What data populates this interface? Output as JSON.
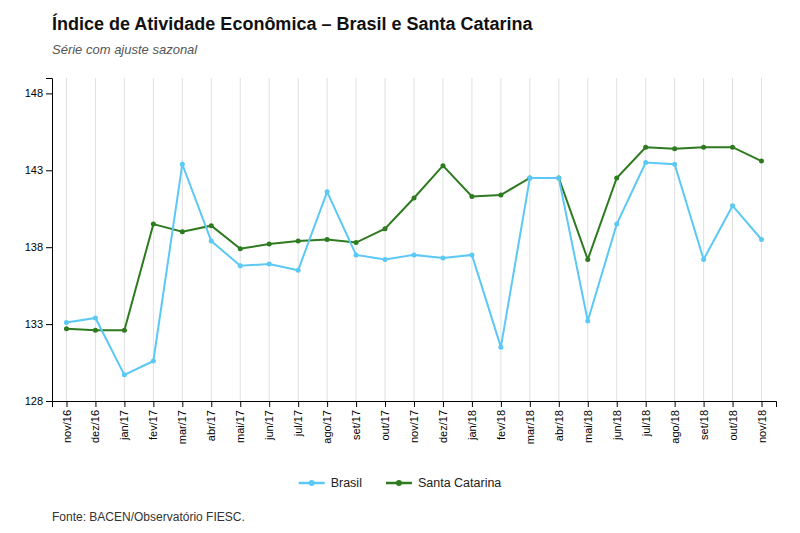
{
  "chart_data": {
    "type": "line",
    "title": "Índice de Atividade Econômica – Brasil e Santa Catarina",
    "subtitle": "Série com ajuste sazonal",
    "source": "Fonte: BACEN/Observatório FIESC.",
    "categories": [
      "nov/16",
      "dez/16",
      "jan/17",
      "fev/17",
      "mar/17",
      "abr/17",
      "mai/17",
      "jun/17",
      "jul/17",
      "ago/17",
      "set/17",
      "out/17",
      "nov/17",
      "dez/17",
      "jan/18",
      "fev/18",
      "mar/18",
      "abr/18",
      "mai/18",
      "jun/18",
      "jul/18",
      "ago/18",
      "set/18",
      "out/18",
      "nov/18"
    ],
    "series": [
      {
        "name": "Santa Catarina",
        "color": "#2d7a1f",
        "marker": "circle",
        "values": [
          132.7,
          132.6,
          132.6,
          139.5,
          139.0,
          139.4,
          137.9,
          138.2,
          138.4,
          138.5,
          138.3,
          139.2,
          141.2,
          143.3,
          141.3,
          141.4,
          142.5,
          142.5,
          137.2,
          142.5,
          144.5,
          144.4,
          144.5,
          144.5,
          143.6
        ]
      },
      {
        "name": "Brasil",
        "color": "#5bc8f5",
        "marker": "circle",
        "values": [
          133.1,
          133.4,
          129.7,
          130.6,
          143.4,
          138.4,
          136.8,
          136.9,
          136.5,
          141.6,
          137.5,
          137.2,
          137.5,
          137.3,
          137.5,
          131.5,
          142.5,
          142.5,
          133.2,
          139.5,
          143.5,
          143.4,
          137.2,
          140.7,
          138.5
        ]
      }
    ],
    "ylim": [
      128,
      149
    ],
    "yticks": [
      128,
      133,
      138,
      143,
      148
    ],
    "grid": "x",
    "legend": "bottom"
  }
}
